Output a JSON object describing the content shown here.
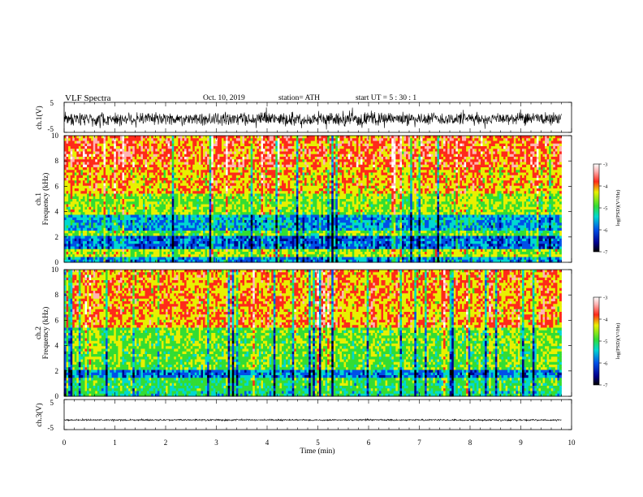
{
  "header": {
    "title": "VLF Spectra",
    "date": "Oct. 10, 2019",
    "station": "station= ATH",
    "start_ut": "start  UT  =    5  : 30 : 1"
  },
  "colors": {
    "red": "#ff2a1a",
    "yellow": "#e8f000",
    "green": "#33dd33",
    "cyan": "#00d8d0",
    "blue": "#0050e8",
    "navy": "#00008c",
    "black": "#000000",
    "pink": "#ffb4b4",
    "white": "#ffffff"
  },
  "chart_data": {
    "type": "heatmap",
    "x_axis": {
      "label": "Time (min)",
      "range": [
        0,
        10
      ],
      "ticks": [
        "0",
        "1",
        "2",
        "3",
        "4",
        "5",
        "6",
        "7",
        "8",
        "9",
        "10"
      ],
      "data_end_min": 9.8
    },
    "panels": [
      {
        "kind": "waveform",
        "ylabel": "ch.1(V)",
        "y_range": [
          -5,
          5
        ],
        "y_ticks": [
          "5",
          "-5"
        ],
        "envelope_mean_v": -0.5,
        "envelope_amp_v": 2.5
      },
      {
        "kind": "spectrogram",
        "ylabel_line1": "ch.1",
        "ylabel_line2": "Frequency  (kHz)",
        "y_range": [
          0,
          10
        ],
        "y_ticks": [
          "0",
          "2",
          "4",
          "6",
          "8",
          "10"
        ],
        "colorbar": {
          "label": "log(PSD)(V²/Hz)",
          "range": [
            -7,
            -3
          ],
          "ticks": [
            "-3",
            "-4",
            "-5",
            "-6",
            "-7"
          ]
        },
        "bands_khz": [
          {
            "from": 0,
            "to": 0.5,
            "level": -5.5
          },
          {
            "from": 0.5,
            "to": 1.0,
            "level": -4.3
          },
          {
            "from": 1.0,
            "to": 2.0,
            "level": -5.7
          },
          {
            "from": 2.0,
            "to": 2.5,
            "level": -4.6
          },
          {
            "from": 2.5,
            "to": 3.7,
            "level": -5.4
          },
          {
            "from": 3.7,
            "to": 5.5,
            "level": -4.4
          },
          {
            "from": 5.5,
            "to": 7.5,
            "level": -3.9
          },
          {
            "from": 7.5,
            "to": 10,
            "level": -3.6
          }
        ]
      },
      {
        "kind": "spectrogram",
        "ylabel_line1": "ch.2",
        "ylabel_line2": "Frequency  (kHz)",
        "y_range": [
          0,
          10
        ],
        "y_ticks": [
          "0",
          "2",
          "4",
          "6",
          "8",
          "10"
        ],
        "colorbar": {
          "label": "log(PSD)(V²/Hz)",
          "range": [
            -7,
            -3
          ],
          "ticks": [
            "-3",
            "-4",
            "-5",
            "-6",
            "-7"
          ]
        },
        "bands_khz": [
          {
            "from": 0,
            "to": 0.5,
            "level": -5.0
          },
          {
            "from": 0.5,
            "to": 1.5,
            "level": -4.8
          },
          {
            "from": 1.5,
            "to": 2.0,
            "level": -5.6
          },
          {
            "from": 2.0,
            "to": 3.5,
            "level": -4.6
          },
          {
            "from": 3.5,
            "to": 5.5,
            "level": -4.5
          },
          {
            "from": 5.5,
            "to": 10,
            "level": -3.8
          }
        ]
      },
      {
        "kind": "waveform",
        "ylabel": "ch.3(V)",
        "y_range": [
          -5,
          5
        ],
        "y_ticks": [
          "5",
          "-5"
        ],
        "envelope_mean_v": -1.8,
        "envelope_amp_v": 0.3
      }
    ]
  }
}
